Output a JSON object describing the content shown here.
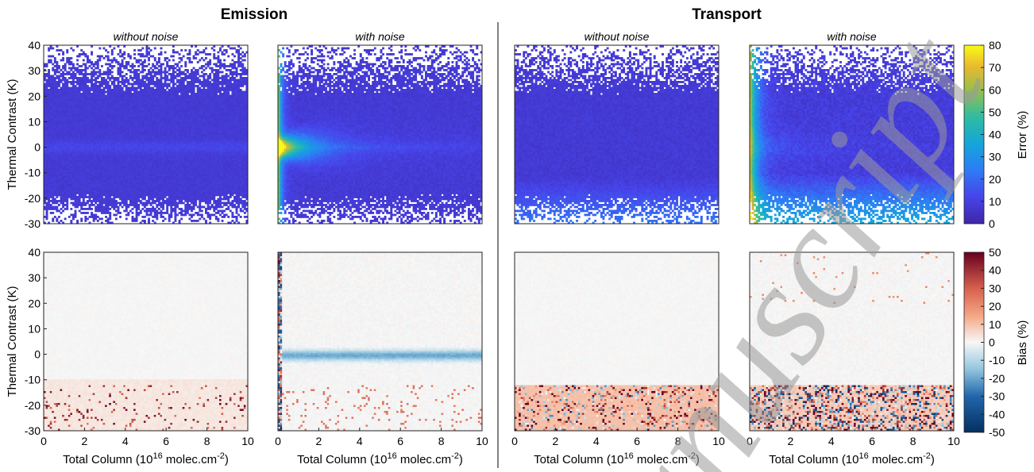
{
  "figure": {
    "group_titles": [
      "Emission",
      "Transport"
    ],
    "watermark_text": "Manuscript",
    "colors": {
      "axis": "#222222",
      "divider": "#000000",
      "watermark": "#9a9a9a"
    }
  },
  "chart_data": [
    {
      "type": "heatmap",
      "group": "Emission",
      "row": "Error",
      "title": "without noise",
      "xlabel": "",
      "ylabel": "Thermal Contrast (K)",
      "xlim": [
        0,
        10
      ],
      "ylim": [
        -30,
        40
      ],
      "x_ticks": [],
      "x_tick_labels": [],
      "y_ticks": [
        -30,
        -20,
        -10,
        0,
        10,
        20,
        30,
        40
      ],
      "y_tick_labels": [
        "-30",
        "-20",
        "-10",
        "0",
        "10",
        "20",
        "30",
        "40"
      ],
      "colorscale": "error",
      "summary": {
        "typical_value_percent": 8,
        "peak_near_zero_contrast_percent": 12
      }
    },
    {
      "type": "heatmap",
      "group": "Emission",
      "row": "Error",
      "title": "with noise",
      "xlabel": "",
      "ylabel": "",
      "xlim": [
        0,
        10
      ],
      "ylim": [
        -30,
        40
      ],
      "x_ticks": [],
      "x_tick_labels": [],
      "y_ticks": [],
      "y_tick_labels": [],
      "colorscale": "error",
      "summary": {
        "saturated_region": "low total column and contrast near 0 K",
        "max_percent": 80
      }
    },
    {
      "type": "heatmap",
      "group": "Transport",
      "row": "Error",
      "title": "without noise",
      "xlabel": "",
      "ylabel": "",
      "xlim": [
        0,
        10
      ],
      "ylim": [
        -30,
        40
      ],
      "x_ticks": [],
      "x_tick_labels": [],
      "y_ticks": [],
      "y_tick_labels": [],
      "colorscale": "error",
      "summary": {
        "typical_value_percent": 8,
        "higher_values": "below -15 K"
      }
    },
    {
      "type": "heatmap",
      "group": "Transport",
      "row": "Error",
      "title": "with noise",
      "xlabel": "",
      "ylabel": "",
      "xlim": [
        0,
        10
      ],
      "ylim": [
        -30,
        40
      ],
      "x_ticks": [],
      "x_tick_labels": [],
      "y_ticks": [],
      "y_tick_labels": [],
      "colorscale": "error",
      "colorbar": {
        "label": "Error (%)",
        "ticks": [
          "80",
          "70",
          "60",
          "50",
          "40",
          "30",
          "20",
          "10",
          "0"
        ],
        "range": [
          0,
          80
        ]
      },
      "summary": {
        "saturated_region": "low total column and negative contrast",
        "max_percent": 80
      }
    },
    {
      "type": "heatmap",
      "group": "Emission",
      "row": "Bias",
      "title": "",
      "xlabel": "Total Column (10",
      "xlabel_sup": "16",
      "xlabel_rest": " molec.cm",
      "xlabel_sup2": "-2",
      "xlabel_end": ")",
      "ylabel": "Thermal Contrast (K)",
      "xlim": [
        0,
        10
      ],
      "ylim": [
        -30,
        40
      ],
      "x_ticks": [
        0,
        2,
        4,
        6,
        8,
        10
      ],
      "x_tick_labels": [
        "0",
        "2",
        "4",
        "6",
        "8",
        "10"
      ],
      "y_ticks": [
        -30,
        -20,
        -10,
        0,
        10,
        20,
        30,
        40
      ],
      "y_tick_labels": [
        "-30",
        "-20",
        "-10",
        "0",
        "10",
        "20",
        "30",
        "40"
      ],
      "colorscale": "bias",
      "summary": {
        "typical_value_percent": 0,
        "scattered_positive_below_minus10K": 20
      }
    },
    {
      "type": "heatmap",
      "group": "Emission",
      "row": "Bias",
      "title": "",
      "xlabel": "Total Column (10",
      "xlabel_sup": "16",
      "xlabel_rest": " molec.cm",
      "xlabel_sup2": "-2",
      "xlabel_end": ")",
      "ylabel": "",
      "xlim": [
        0,
        10
      ],
      "ylim": [
        -30,
        40
      ],
      "x_ticks": [
        0,
        2,
        4,
        6,
        8,
        10
      ],
      "x_tick_labels": [
        "0",
        "2",
        "4",
        "6",
        "8",
        "10"
      ],
      "y_ticks": [],
      "y_tick_labels": [],
      "colorscale": "bias",
      "summary": {
        "negative_band_near_zero_contrast_percent": -20,
        "edge_at_low_column": "mixed +/-50"
      }
    },
    {
      "type": "heatmap",
      "group": "Transport",
      "row": "Bias",
      "title": "",
      "xlabel": "Total Column (10",
      "xlabel_sup": "16",
      "xlabel_rest": " molec.cm",
      "xlabel_sup2": "-2",
      "xlabel_end": ")",
      "ylabel": "",
      "xlim": [
        0,
        10
      ],
      "ylim": [
        -30,
        40
      ],
      "x_ticks": [
        0,
        2,
        4,
        6,
        8,
        10
      ],
      "x_tick_labels": [
        "0",
        "2",
        "4",
        "6",
        "8",
        "10"
      ],
      "y_ticks": [],
      "y_tick_labels": [],
      "colorscale": "bias",
      "summary": {
        "typical_value_percent": 0,
        "positive_below_minus10K_percent": 15
      }
    },
    {
      "type": "heatmap",
      "group": "Transport",
      "row": "Bias",
      "title": "",
      "xlabel": "Total Column (10",
      "xlabel_sup": "16",
      "xlabel_rest": " molec.cm",
      "xlabel_sup2": "-2",
      "xlabel_end": ")",
      "ylabel": "",
      "xlim": [
        0,
        10
      ],
      "ylim": [
        -30,
        40
      ],
      "x_ticks": [
        0,
        2,
        4,
        6,
        8,
        10
      ],
      "x_tick_labels": [
        "0",
        "2",
        "4",
        "6",
        "8",
        "10"
      ],
      "y_ticks": [],
      "y_tick_labels": [],
      "colorscale": "bias",
      "colorbar": {
        "label": "Bias (%)",
        "ticks": [
          "50",
          "40",
          "30",
          "20",
          "10",
          "0",
          "-10",
          "-20",
          "-30",
          "-40",
          "-50"
        ],
        "range": [
          -50,
          50
        ]
      },
      "summary": {
        "mixed_strong_bias_below_minus15K_percent": [
          -50,
          50
        ]
      }
    }
  ]
}
